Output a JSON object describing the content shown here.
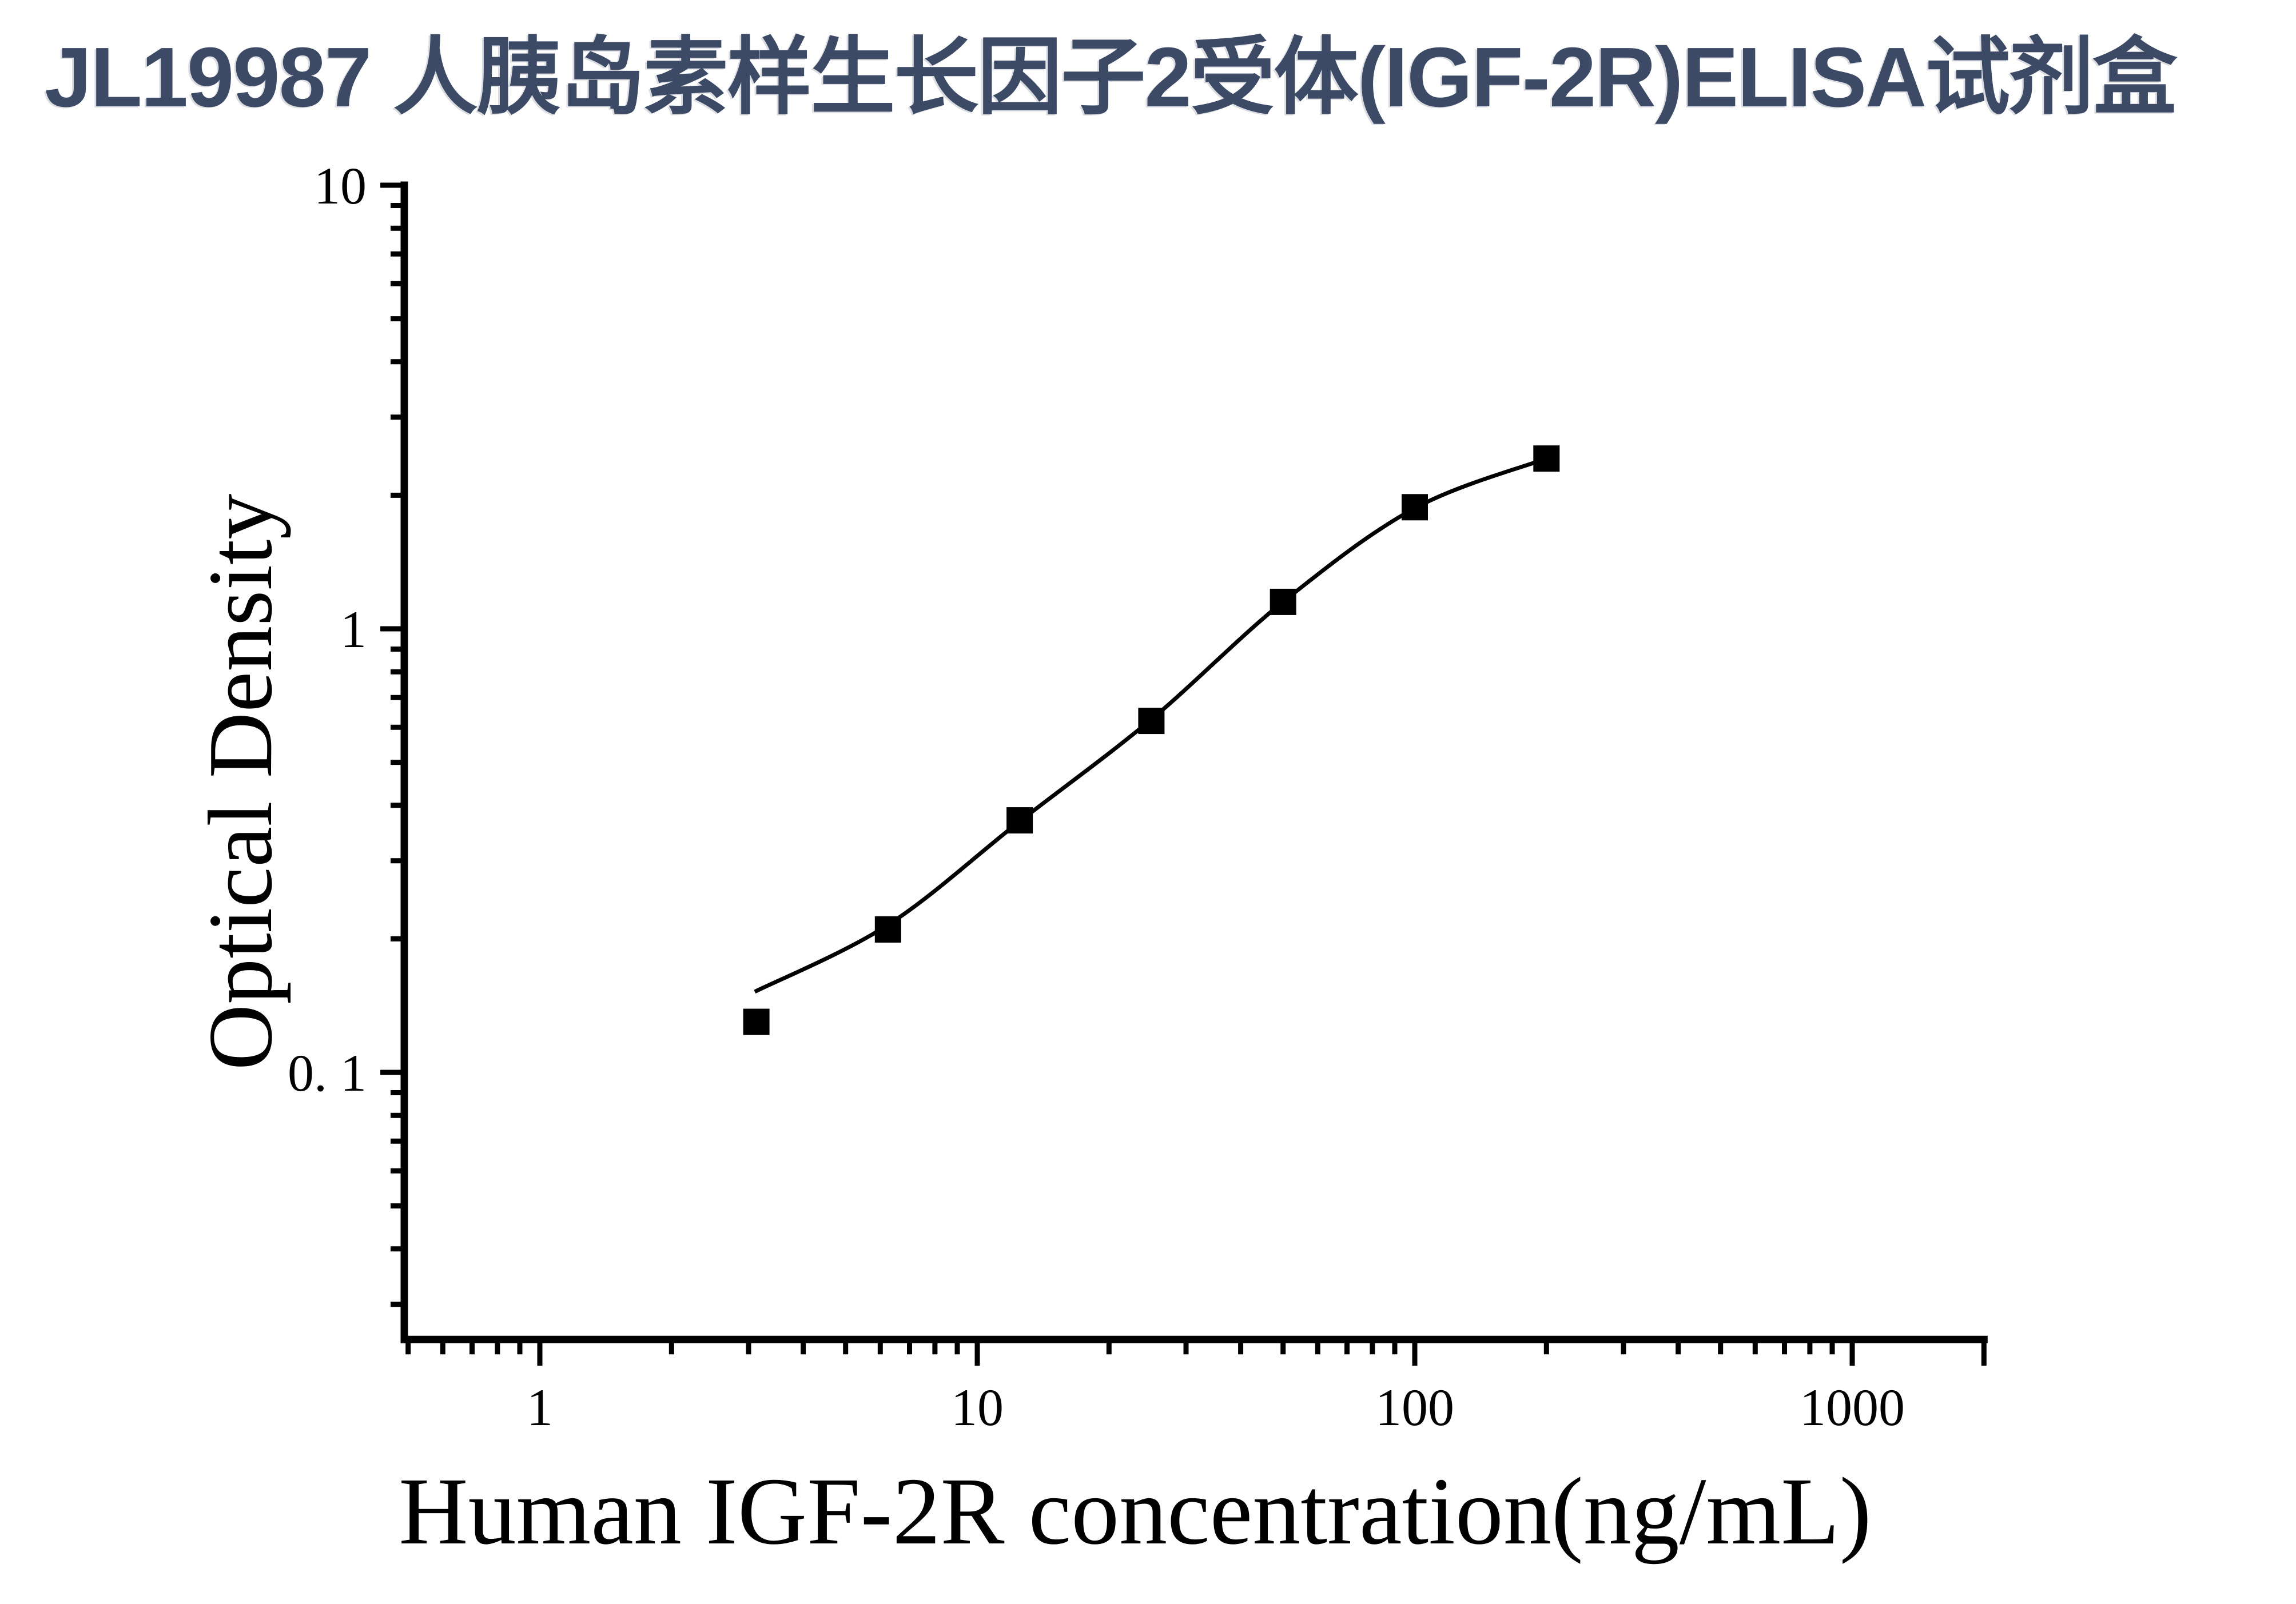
{
  "page_title": "JL19987 人胰岛素样生长因子2受体(IGF-2R)ELISA试剂盒",
  "colors": {
    "title": "#3D4A66",
    "plot": "#000000",
    "background": "#FFFFFF"
  },
  "chart_data": {
    "type": "scatter",
    "title": "JL19987 人胰岛素样生长因子2受体(IGF-2R)ELISA试剂盒",
    "xlabel": "Human IGF-2R concentration(ng/mL)",
    "ylabel": "Optical Density",
    "x_scale": "log",
    "y_scale": "log",
    "xlim": [
      0.49,
      2000
    ],
    "ylim": [
      0.025,
      10
    ],
    "grid": false,
    "legend": "none",
    "x_major_ticks": [
      {
        "value": 1,
        "label": "1"
      },
      {
        "value": 10,
        "label": "10"
      },
      {
        "value": 100,
        "label": "100"
      },
      {
        "value": 1000,
        "label": "1000"
      }
    ],
    "y_major_ticks": [
      {
        "value": 10,
        "label": "10"
      },
      {
        "value": 1,
        "label": "1"
      },
      {
        "value": 0.1,
        "label": "0. 1"
      }
    ],
    "series": [
      {
        "name": "standard-points",
        "marker": "filled-square",
        "x": [
          3.125,
          6.25,
          12.5,
          25,
          50,
          100,
          200
        ],
        "y": [
          0.13,
          0.21,
          0.37,
          0.62,
          1.15,
          1.88,
          2.42
        ]
      }
    ],
    "fit_curve": {
      "name": "4pl-fit-curve",
      "x": [
        3.1,
        6.25,
        12.5,
        25,
        50,
        100,
        200
      ],
      "y": [
        0.152,
        0.215,
        0.368,
        0.625,
        1.15,
        1.87,
        2.42
      ]
    }
  }
}
